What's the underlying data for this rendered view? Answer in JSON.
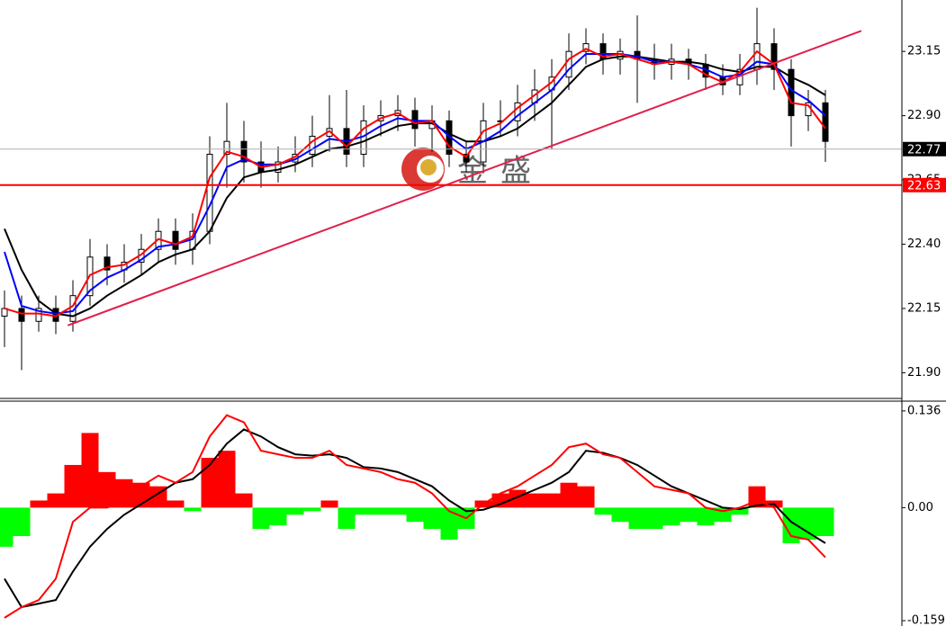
{
  "chart_data": [
    {
      "type": "candlestick",
      "watermark": "金盛",
      "open": [
        22.12,
        22.15,
        22.1,
        22.15,
        22.1,
        22.2,
        22.35,
        22.3,
        22.33,
        22.38,
        22.45,
        22.38,
        22.45,
        22.75,
        22.8,
        22.72,
        22.68,
        22.72,
        22.75,
        22.82,
        22.85,
        22.75,
        22.88,
        22.9,
        22.92,
        22.85,
        22.88,
        22.75,
        22.72,
        22.88,
        22.88,
        22.95,
        23.0,
        23.05,
        23.15,
        23.18,
        23.12,
        23.15,
        23.12,
        23.1,
        23.12,
        23.1,
        23.05,
        23.02,
        23.08,
        23.18,
        23.08,
        22.9,
        22.95
      ],
      "high": [
        22.22,
        22.2,
        22.2,
        22.2,
        22.26,
        22.42,
        22.4,
        22.4,
        22.44,
        22.5,
        22.5,
        22.52,
        22.82,
        22.95,
        22.88,
        22.8,
        22.78,
        22.82,
        22.9,
        22.98,
        23.0,
        22.94,
        22.96,
        22.98,
        22.97,
        22.94,
        22.92,
        22.8,
        22.95,
        22.96,
        23.02,
        23.08,
        23.12,
        23.22,
        23.24,
        23.22,
        23.2,
        23.29,
        23.18,
        23.18,
        23.16,
        23.14,
        23.1,
        23.14,
        23.32,
        23.24,
        23.12,
        23.0,
        23.0
      ],
      "low": [
        22.0,
        21.91,
        22.06,
        22.05,
        22.06,
        22.16,
        22.24,
        22.25,
        22.28,
        22.33,
        22.32,
        22.32,
        22.4,
        22.62,
        22.64,
        22.62,
        22.64,
        22.68,
        22.7,
        22.76,
        22.7,
        22.7,
        22.82,
        22.84,
        22.78,
        22.76,
        22.7,
        22.68,
        22.68,
        22.82,
        22.82,
        22.88,
        22.77,
        23.0,
        23.1,
        23.06,
        23.06,
        22.95,
        23.04,
        23.04,
        23.04,
        23.0,
        22.98,
        22.98,
        23.02,
        23.0,
        22.78,
        22.84,
        22.72
      ],
      "close": [
        22.15,
        22.1,
        22.15,
        22.1,
        22.2,
        22.35,
        22.3,
        22.33,
        22.38,
        22.45,
        22.38,
        22.45,
        22.75,
        22.8,
        22.72,
        22.68,
        22.72,
        22.75,
        22.82,
        22.85,
        22.75,
        22.88,
        22.9,
        22.92,
        22.85,
        22.88,
        22.75,
        22.72,
        22.88,
        22.88,
        22.95,
        23.0,
        23.05,
        23.15,
        23.18,
        23.12,
        23.15,
        23.12,
        23.1,
        23.12,
        23.1,
        23.05,
        23.02,
        23.08,
        23.18,
        23.08,
        22.9,
        22.95,
        22.8
      ],
      "up_color": "#ffffff",
      "down_color": "#000000",
      "edge_color": "#000000",
      "series": [
        {
          "color": "#000000",
          "values": [
            22.46,
            22.3,
            22.18,
            22.13,
            22.12,
            22.15,
            22.2,
            22.24,
            22.28,
            22.33,
            22.36,
            22.38,
            22.45,
            22.58,
            22.66,
            22.68,
            22.69,
            22.71,
            22.74,
            22.77,
            22.78,
            22.8,
            22.83,
            22.86,
            22.87,
            22.87,
            22.83,
            22.8,
            22.8,
            22.82,
            22.85,
            22.9,
            22.95,
            23.02,
            23.09,
            23.12,
            23.13,
            23.13,
            23.12,
            23.11,
            23.11,
            23.1,
            23.08,
            23.07,
            23.09,
            23.09,
            23.05,
            23.02,
            22.98
          ]
        },
        {
          "color": "#0000ff",
          "values": [
            22.37,
            22.16,
            22.14,
            22.13,
            22.14,
            22.22,
            22.27,
            22.3,
            22.34,
            22.39,
            22.4,
            22.42,
            22.55,
            22.7,
            22.73,
            22.71,
            22.71,
            22.73,
            22.77,
            22.81,
            22.8,
            22.82,
            22.86,
            22.89,
            22.88,
            22.88,
            22.82,
            22.77,
            22.8,
            22.84,
            22.9,
            22.95,
            23.0,
            23.08,
            23.14,
            23.14,
            23.14,
            23.13,
            23.11,
            23.11,
            23.1,
            23.08,
            23.05,
            23.06,
            23.11,
            23.1,
            23.0,
            22.96,
            22.9
          ]
        },
        {
          "color": "#ff0000",
          "values": [
            22.15,
            22.13,
            22.13,
            22.12,
            22.16,
            22.28,
            22.31,
            22.32,
            22.36,
            22.42,
            22.4,
            22.43,
            22.66,
            22.76,
            22.74,
            22.7,
            22.71,
            22.74,
            22.8,
            22.84,
            22.78,
            22.85,
            22.89,
            22.91,
            22.87,
            22.88,
            22.78,
            22.74,
            22.84,
            22.87,
            22.93,
            22.98,
            23.03,
            23.12,
            23.16,
            23.13,
            23.14,
            23.12,
            23.1,
            23.11,
            23.1,
            23.06,
            23.03,
            23.07,
            23.15,
            23.1,
            22.95,
            22.94,
            22.85
          ]
        }
      ],
      "trendline": {
        "x": [
          3.7,
          50.1
        ],
        "y": [
          22.084,
          23.23
        ],
        "color": "#e0204a"
      },
      "price_lines": [
        {
          "value": 22.77,
          "line_color": "#b0b0b0",
          "box_color": "#000000"
        },
        {
          "value": 22.63,
          "line_color": "#ff0000",
          "box_color": "#ff0000"
        }
      ],
      "ylim": [
        21.8,
        23.35
      ],
      "yticks": [
        {
          "value": 21.9,
          "label": "21.90"
        },
        22.15,
        {
          "value": 22.4,
          "label": "22.40"
        },
        22.65,
        {
          "value": 22.9,
          "label": "22.90"
        },
        23.15
      ]
    },
    {
      "type": "macd",
      "histogram": [
        -0.055,
        -0.04,
        0.01,
        0.02,
        0.06,
        0.105,
        0.05,
        0.04,
        0.035,
        0.03,
        0.01,
        -0.005,
        0.07,
        0.08,
        0.02,
        -0.03,
        -0.025,
        -0.01,
        -0.005,
        0.01,
        -0.03,
        -0.01,
        -0.01,
        -0.01,
        -0.02,
        -0.03,
        -0.045,
        -0.03,
        0.01,
        0.02,
        0.025,
        0.02,
        0.02,
        0.035,
        0.03,
        -0.01,
        -0.02,
        -0.03,
        -0.03,
        -0.025,
        -0.02,
        -0.025,
        -0.02,
        -0.01,
        0.03,
        0.01,
        -0.05,
        -0.045,
        -0.04
      ],
      "up_color": "#ff0000",
      "down_color": "#00ff00",
      "series": [
        {
          "color": "#000000",
          "values": [
            -0.1,
            -0.14,
            -0.135,
            -0.13,
            -0.09,
            -0.055,
            -0.03,
            -0.01,
            0.005,
            0.02,
            0.035,
            0.04,
            0.06,
            0.09,
            0.11,
            0.1,
            0.085,
            0.075,
            0.073,
            0.075,
            0.07,
            0.057,
            0.055,
            0.05,
            0.04,
            0.03,
            0.01,
            -0.005,
            -0.003,
            0.005,
            0.015,
            0.025,
            0.035,
            0.05,
            0.08,
            0.077,
            0.07,
            0.06,
            0.045,
            0.03,
            0.02,
            0.01,
            0.0,
            -0.002,
            0.003,
            0.005,
            -0.02,
            -0.035,
            -0.05
          ]
        },
        {
          "color": "#ff0000",
          "values": [
            -0.155,
            -0.14,
            -0.13,
            -0.1,
            -0.02,
            0.0,
            0.0,
            0.01,
            0.03,
            0.045,
            0.035,
            0.05,
            0.1,
            0.13,
            0.12,
            0.08,
            0.075,
            0.07,
            0.07,
            0.08,
            0.06,
            0.055,
            0.05,
            0.04,
            0.035,
            0.02,
            -0.005,
            -0.015,
            0.005,
            0.02,
            0.03,
            0.045,
            0.06,
            0.085,
            0.09,
            0.075,
            0.07,
            0.05,
            0.03,
            0.025,
            0.02,
            0.0,
            -0.005,
            0.0,
            0.01,
            0.0,
            -0.04,
            -0.045,
            -0.07
          ]
        }
      ],
      "ylim": [
        -0.1665,
        0.1485
      ],
      "yticks": [
        0.136,
        {
          "value": 0,
          "label": "0.00"
        },
        -0.159
      ]
    }
  ]
}
